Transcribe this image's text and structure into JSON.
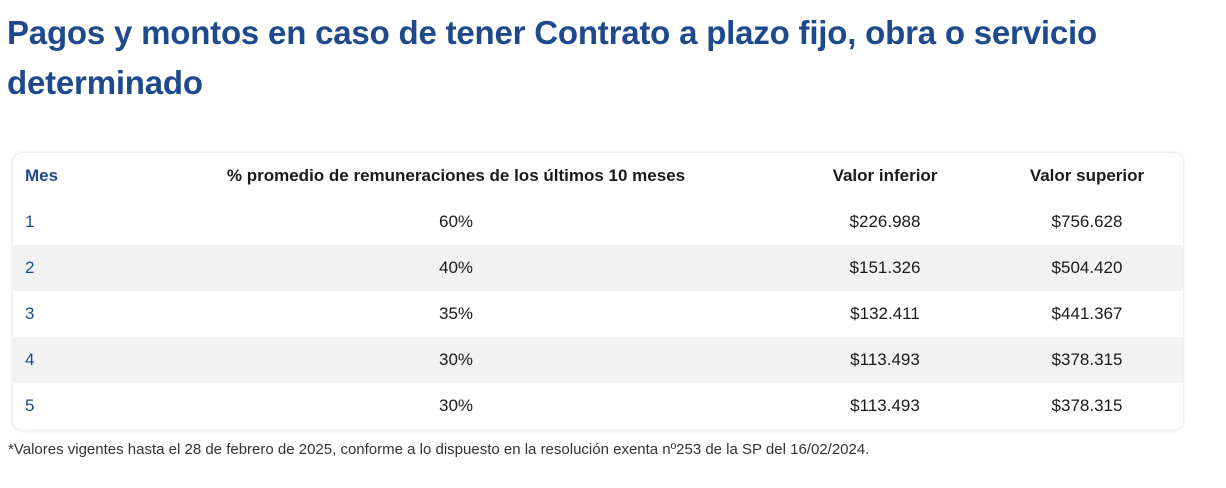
{
  "title": "Pagos y montos en caso de tener Contrato a plazo fijo, obra o servicio determinado",
  "table": {
    "headers": {
      "mes": "Mes",
      "porcentaje": "% promedio de remuneraciones de los últimos 10 meses",
      "inferior": "Valor inferior",
      "superior": "Valor superior"
    },
    "rows": [
      {
        "mes": "1",
        "porcentaje": "60%",
        "inferior": "$226.988",
        "superior": "$756.628"
      },
      {
        "mes": "2",
        "porcentaje": "40%",
        "inferior": "$151.326",
        "superior": "$504.420"
      },
      {
        "mes": "3",
        "porcentaje": "35%",
        "inferior": "$132.411",
        "superior": "$441.367"
      },
      {
        "mes": "4",
        "porcentaje": "30%",
        "inferior": "$113.493",
        "superior": "$378.315"
      },
      {
        "mes": "5",
        "porcentaje": "30%",
        "inferior": "$113.493",
        "superior": "$378.315"
      }
    ]
  },
  "footnote": "*Valores vigentes hasta el 28 de febrero de 2025, conforme a lo dispuesto en la resolución exenta nº253 de la SP del 16/02/2024.",
  "colors": {
    "title": "#1e4a8d",
    "accent_text": "#1e4a8d",
    "row_shade": "#f2f2f2"
  }
}
